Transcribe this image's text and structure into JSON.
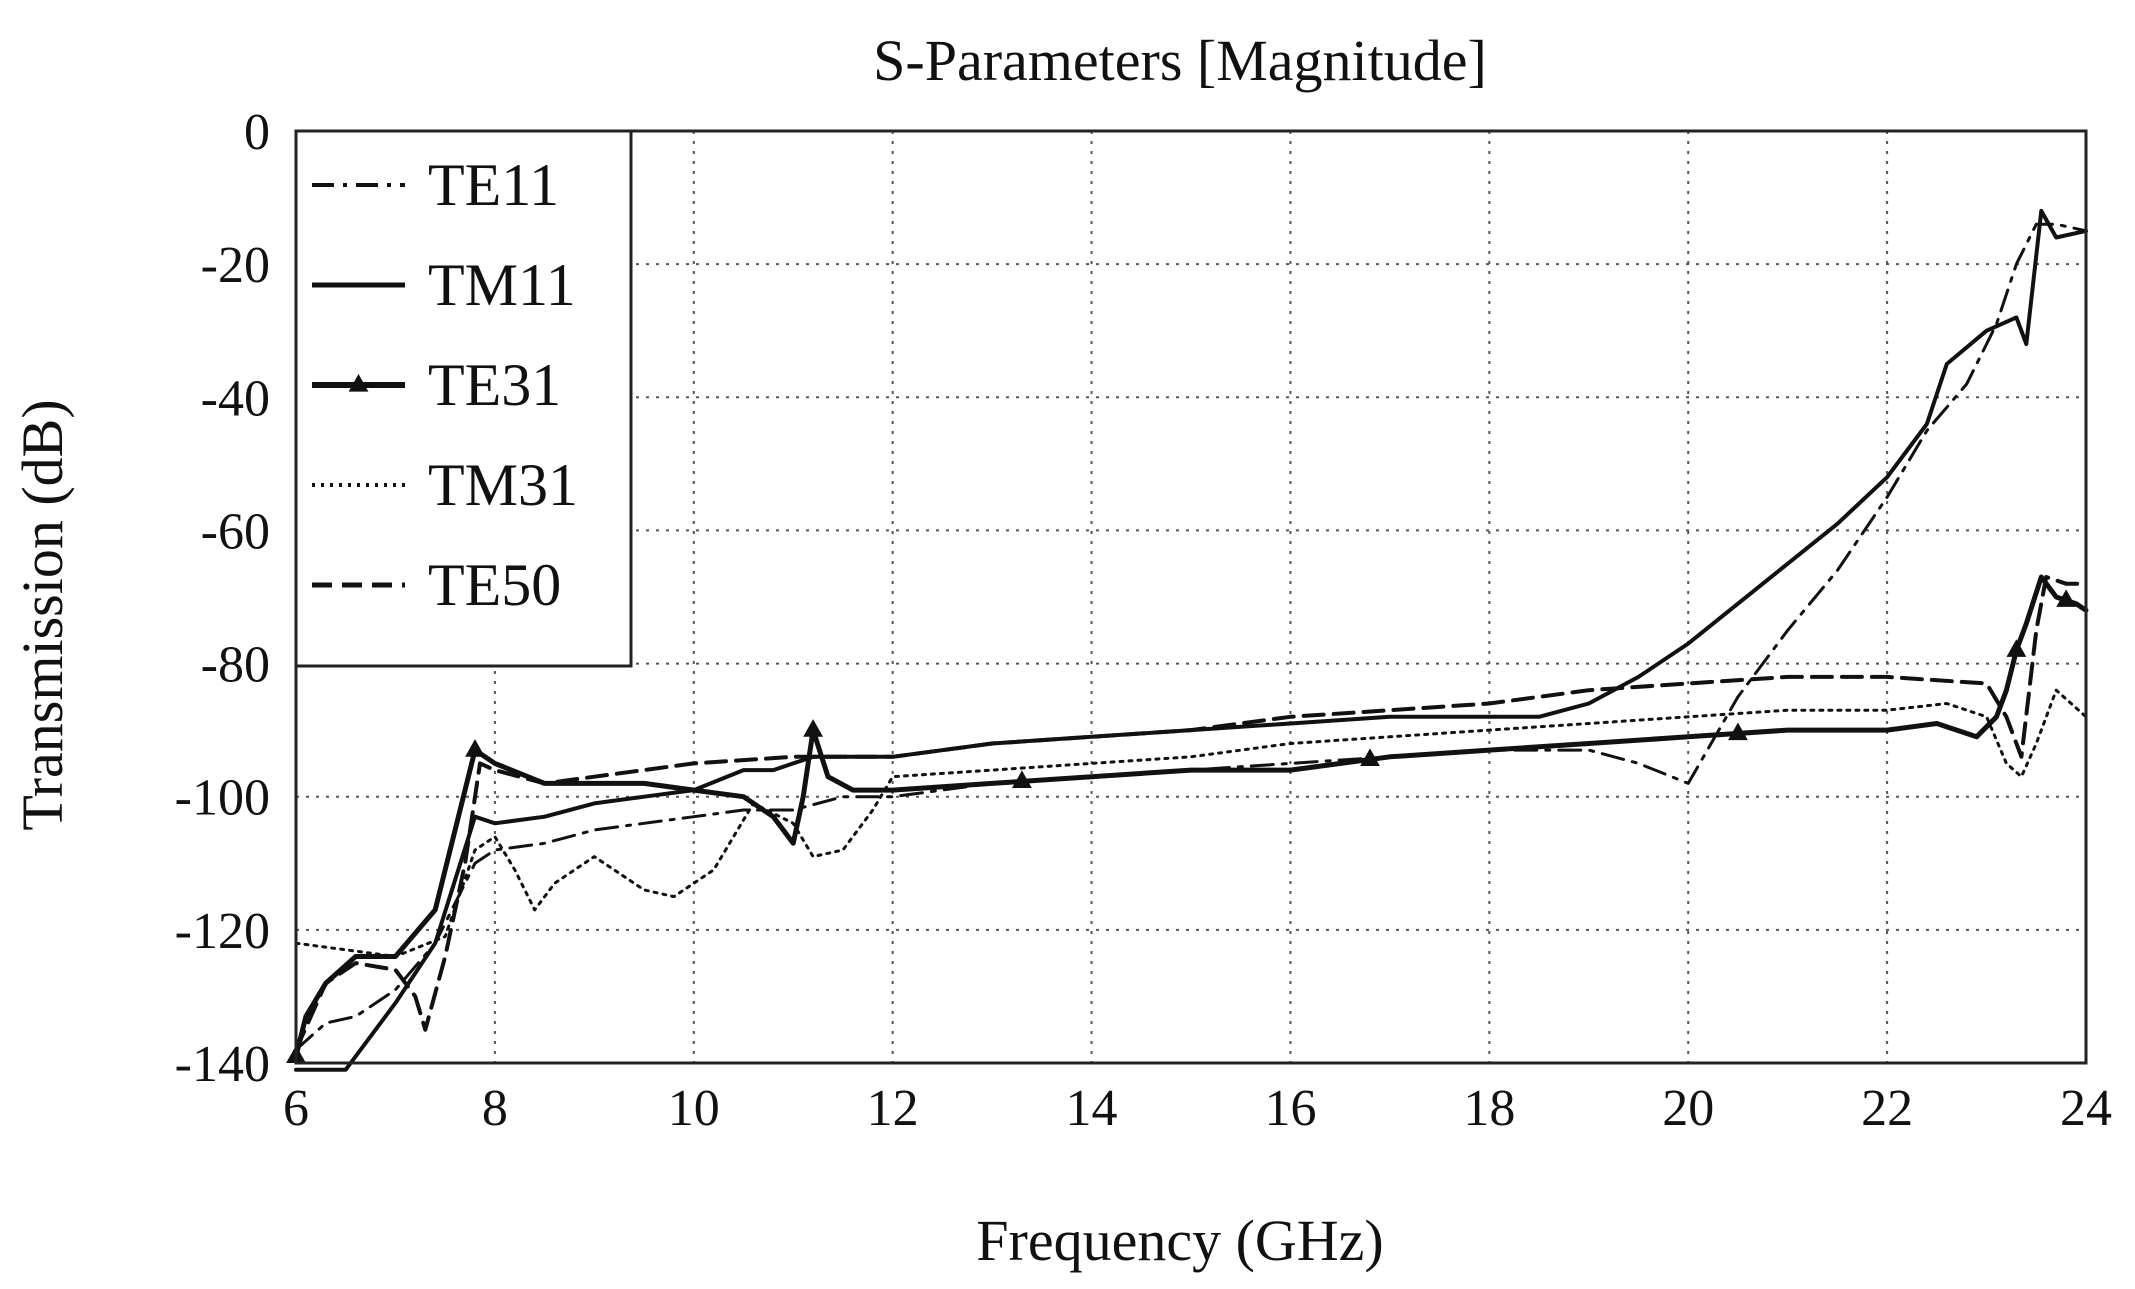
{
  "chart_data": {
    "type": "line",
    "title": "S-Parameters [Magnitude]",
    "xlabel": "Frequency (GHz)",
    "ylabel": "Transmission (dB)",
    "xlim": [
      6,
      24
    ],
    "ylim": [
      -140,
      0
    ],
    "xticks": [
      6,
      8,
      10,
      12,
      14,
      16,
      18,
      20,
      22,
      24
    ],
    "yticks": [
      0,
      -20,
      -40,
      -60,
      -80,
      -100,
      -120,
      -140
    ],
    "grid": true,
    "legend_position": "top-left",
    "series": [
      {
        "name": "TE11",
        "style": "dashdot",
        "x": [
          6,
          6.3,
          6.6,
          7.0,
          7.4,
          7.8,
          8.0,
          8.5,
          9.0,
          9.5,
          10.0,
          10.5,
          11.0,
          11.5,
          12.0,
          13.0,
          14.0,
          15.0,
          16.0,
          17.0,
          18.0,
          19.0,
          19.5,
          20.0,
          20.5,
          21.0,
          21.5,
          22.0,
          22.4,
          22.8,
          23.1,
          23.3,
          23.5,
          23.7,
          24.0
        ],
        "y": [
          -138,
          -134,
          -133,
          -129,
          -122,
          -110,
          -108,
          -107,
          -105,
          -104,
          -103,
          -102,
          -102,
          -100,
          -100,
          -98,
          -97,
          -96,
          -95,
          -94,
          -93,
          -93,
          -95,
          -98,
          -85,
          -75,
          -66,
          -55,
          -45,
          -38,
          -29,
          -20,
          -14,
          -14,
          -15
        ]
      },
      {
        "name": "TM11",
        "style": "solid",
        "x": [
          6,
          6.2,
          6.5,
          7.0,
          7.4,
          7.8,
          8.0,
          8.5,
          9.0,
          9.5,
          10.0,
          10.5,
          10.8,
          11.0,
          11.2,
          11.5,
          12.0,
          13.0,
          14.0,
          15.0,
          16.0,
          17.0,
          18.0,
          18.5,
          19.0,
          19.5,
          20.0,
          20.5,
          21.0,
          21.5,
          22.0,
          22.4,
          22.6,
          23.0,
          23.3,
          23.4,
          23.55,
          23.7,
          24.0
        ],
        "y": [
          -141,
          -141,
          -141,
          -131,
          -122,
          -103,
          -104,
          -103,
          -101,
          -100,
          -99,
          -96,
          -96,
          -95,
          -94,
          -94,
          -94,
          -92,
          -91,
          -90,
          -89,
          -88,
          -88,
          -88,
          -86,
          -82,
          -77,
          -71,
          -65,
          -59,
          -52,
          -44,
          -35,
          -30,
          -28,
          -32,
          -12,
          -16,
          -15
        ]
      },
      {
        "name": "TE31",
        "style": "solid-triangle",
        "markers": [
          6,
          7.8,
          11.2,
          13.3,
          16.8,
          20.5,
          23.3,
          23.8
        ],
        "x": [
          6,
          6.1,
          6.3,
          6.6,
          7.0,
          7.4,
          7.8,
          8.0,
          8.5,
          9.0,
          9.5,
          10.0,
          10.5,
          10.8,
          11.0,
          11.1,
          11.2,
          11.35,
          11.6,
          12.0,
          13.0,
          14.0,
          15.0,
          16.0,
          17.0,
          18.0,
          19.0,
          20.0,
          21.0,
          22.0,
          22.5,
          22.9,
          23.1,
          23.2,
          23.3,
          23.4,
          23.55,
          23.7,
          23.9,
          24.0
        ],
        "y": [
          -139,
          -133,
          -128,
          -124,
          -124,
          -117,
          -93,
          -95,
          -98,
          -98,
          -98,
          -99,
          -100,
          -103,
          -107,
          -100,
          -90,
          -97,
          -99,
          -99,
          -98,
          -97,
          -96,
          -96,
          -94,
          -93,
          -92,
          -91,
          -90,
          -90,
          -89,
          -91,
          -88,
          -84,
          -78,
          -74,
          -67,
          -70,
          -71,
          -72
        ]
      },
      {
        "name": "TM31",
        "style": "dotted",
        "x": [
          6,
          6.5,
          7.0,
          7.5,
          7.8,
          8.0,
          8.2,
          8.4,
          8.6,
          9.0,
          9.5,
          9.8,
          10.2,
          10.6,
          11.0,
          11.2,
          11.5,
          11.8,
          12.0,
          13.0,
          14.0,
          15.0,
          16.0,
          17.0,
          18.0,
          19.0,
          20.0,
          21.0,
          22.0,
          22.6,
          23.0,
          23.2,
          23.35,
          23.5,
          23.7,
          24.0
        ],
        "y": [
          -122,
          -123,
          -124,
          -121,
          -108,
          -106,
          -111,
          -117,
          -113,
          -109,
          -114,
          -115,
          -111,
          -101,
          -104,
          -109,
          -108,
          -102,
          -97,
          -96,
          -95,
          -94,
          -92,
          -91,
          -90,
          -89,
          -88,
          -87,
          -87,
          -86,
          -88,
          -95,
          -97,
          -92,
          -84,
          -88
        ]
      },
      {
        "name": "TE50",
        "style": "dashed",
        "x": [
          6,
          6.3,
          6.6,
          7.0,
          7.2,
          7.3,
          7.5,
          7.7,
          7.85,
          8.0,
          8.5,
          9.0,
          10.0,
          11.0,
          12.0,
          13.0,
          14.0,
          15.0,
          16.0,
          17.0,
          18.0,
          19.0,
          20.0,
          21.0,
          22.0,
          23.0,
          23.2,
          23.35,
          23.5,
          23.6,
          23.8,
          24.0
        ],
        "y": [
          -138,
          -128,
          -125,
          -126,
          -130,
          -135,
          -124,
          -110,
          -95,
          -96,
          -98,
          -97,
          -95,
          -94,
          -94,
          -92,
          -91,
          -90,
          -88,
          -87,
          -86,
          -84,
          -83,
          -82,
          -82,
          -83,
          -88,
          -94,
          -75,
          -67,
          -68,
          -68
        ]
      }
    ]
  }
}
